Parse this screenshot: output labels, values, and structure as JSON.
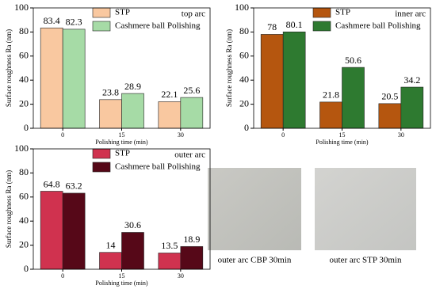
{
  "chart_data": [
    {
      "type": "bar",
      "annotation": "top arc",
      "x_label": "Polishing time (min)",
      "y_label": "Surface roughness Ra (nm)",
      "categories": [
        "0",
        "15",
        "30"
      ],
      "ylim": [
        0,
        100
      ],
      "yticks": [
        0,
        20,
        40,
        60,
        80,
        100
      ],
      "series": [
        {
          "name": "STP",
          "color": "#f9c8a0",
          "values": [
            83.4,
            23.8,
            22.1
          ]
        },
        {
          "name": "Cashmere ball Polishing",
          "color": "#a6dba6",
          "values": [
            82.3,
            28.9,
            25.6
          ]
        }
      ]
    },
    {
      "type": "bar",
      "annotation": "inner arc",
      "x_label": "Polishing time (min)",
      "y_label": "Surface roughness Ra (nm)",
      "categories": [
        "0",
        "15",
        "30"
      ],
      "ylim": [
        0,
        100
      ],
      "yticks": [
        0,
        20,
        40,
        60,
        80,
        100
      ],
      "series": [
        {
          "name": "STP",
          "color": "#b5560f",
          "values": [
            78,
            21.8,
            20.5
          ]
        },
        {
          "name": "Cashmere ball Polishing",
          "color": "#2e7a30",
          "values": [
            80.1,
            50.6,
            34.2
          ]
        }
      ]
    },
    {
      "type": "bar",
      "annotation": "outer arc",
      "x_label": "Polishing time (min)",
      "y_label": "Surface roughness Ra (nm)",
      "categories": [
        "0",
        "15",
        "30"
      ],
      "ylim": [
        0,
        100
      ],
      "yticks": [
        0,
        20,
        40,
        60,
        80,
        100
      ],
      "series": [
        {
          "name": "STP",
          "color": "#d0324f",
          "values": [
            64.8,
            14,
            13.5
          ]
        },
        {
          "name": "Cashmere ball Polishing",
          "color": "#560818",
          "values": [
            63.2,
            30.6,
            18.9
          ]
        }
      ]
    }
  ],
  "images": [
    {
      "caption": "outer arc CBP 30min"
    },
    {
      "caption": "outer arc STP 30min"
    }
  ]
}
